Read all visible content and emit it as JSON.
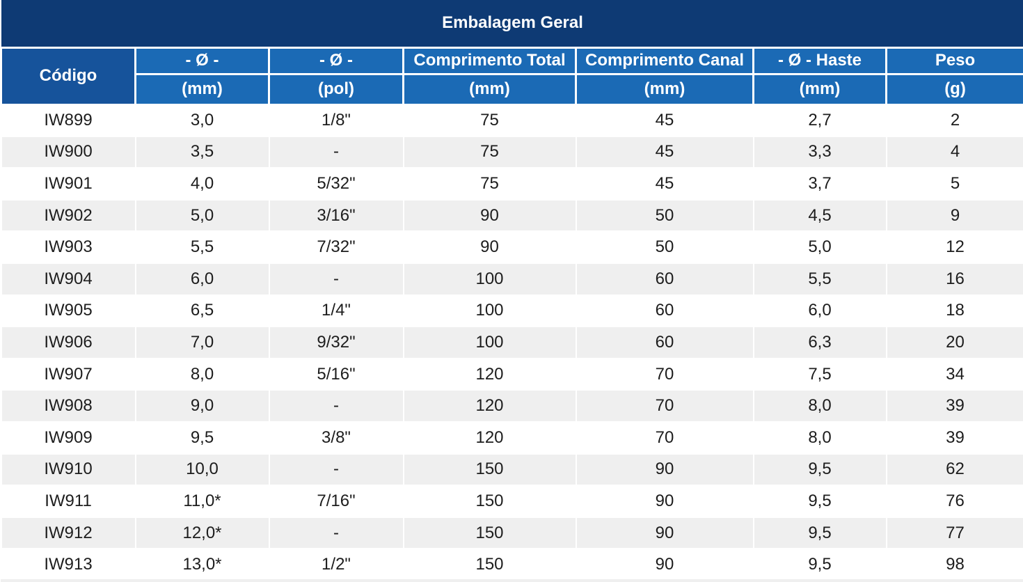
{
  "table": {
    "title": "Embalagem Geral",
    "header": {
      "codigo_label": "Código",
      "columns": [
        {
          "key": "diametro-mm",
          "label": "- Ø -",
          "unit": "(mm)"
        },
        {
          "key": "diametro-pol",
          "label": "- Ø -",
          "unit": "(pol)"
        },
        {
          "key": "comprimento-total",
          "label": "Comprimento Total",
          "unit": "(mm)"
        },
        {
          "key": "comprimento-canal",
          "label": "Comprimento Canal",
          "unit": "(mm)"
        },
        {
          "key": "diametro-haste",
          "label": "- Ø - Haste",
          "unit": "(mm)"
        },
        {
          "key": "peso",
          "label": "Peso",
          "unit": "(g)"
        }
      ]
    },
    "rows": [
      [
        "IW899",
        "3,0",
        "1/8\"",
        "75",
        "45",
        "2,7",
        "2"
      ],
      [
        "IW900",
        "3,5",
        "-",
        "75",
        "45",
        "3,3",
        "4"
      ],
      [
        "IW901",
        "4,0",
        "5/32\"",
        "75",
        "45",
        "3,7",
        "5"
      ],
      [
        "IW902",
        "5,0",
        "3/16\"",
        "90",
        "50",
        "4,5",
        "9"
      ],
      [
        "IW903",
        "5,5",
        "7/32\"",
        "90",
        "50",
        "5,0",
        "12"
      ],
      [
        "IW904",
        "6,0",
        "-",
        "100",
        "60",
        "5,5",
        "16"
      ],
      [
        "IW905",
        "6,5",
        "1/4\"",
        "100",
        "60",
        "6,0",
        "18"
      ],
      [
        "IW906",
        "7,0",
        "9/32\"",
        "100",
        "60",
        "6,3",
        "20"
      ],
      [
        "IW907",
        "8,0",
        "5/16\"",
        "120",
        "70",
        "7,5",
        "34"
      ],
      [
        "IW908",
        "9,0",
        "-",
        "120",
        "70",
        "8,0",
        "39"
      ],
      [
        "IW909",
        "9,5",
        "3/8\"",
        "120",
        "70",
        "8,0",
        "39"
      ],
      [
        "IW910",
        "10,0",
        "-",
        "150",
        "90",
        "9,5",
        "62"
      ],
      [
        "IW911",
        "11,0*",
        "7/16\"",
        "150",
        "90",
        "9,5",
        "76"
      ],
      [
        "IW912",
        "12,0*",
        "-",
        "150",
        "90",
        "9,5",
        "77"
      ],
      [
        "IW913",
        "13,0*",
        "1/2\"",
        "150",
        "90",
        "9,5",
        "98"
      ]
    ],
    "colors": {
      "title_bg": "#0e3a74",
      "header_bg": "#16539b",
      "subheader_bg": "#1b6ab5",
      "row_bg": "#ffffff",
      "row_alt_bg": "#efefef",
      "header_text": "#ffffff",
      "cell_text": "#1d1d1d"
    }
  }
}
